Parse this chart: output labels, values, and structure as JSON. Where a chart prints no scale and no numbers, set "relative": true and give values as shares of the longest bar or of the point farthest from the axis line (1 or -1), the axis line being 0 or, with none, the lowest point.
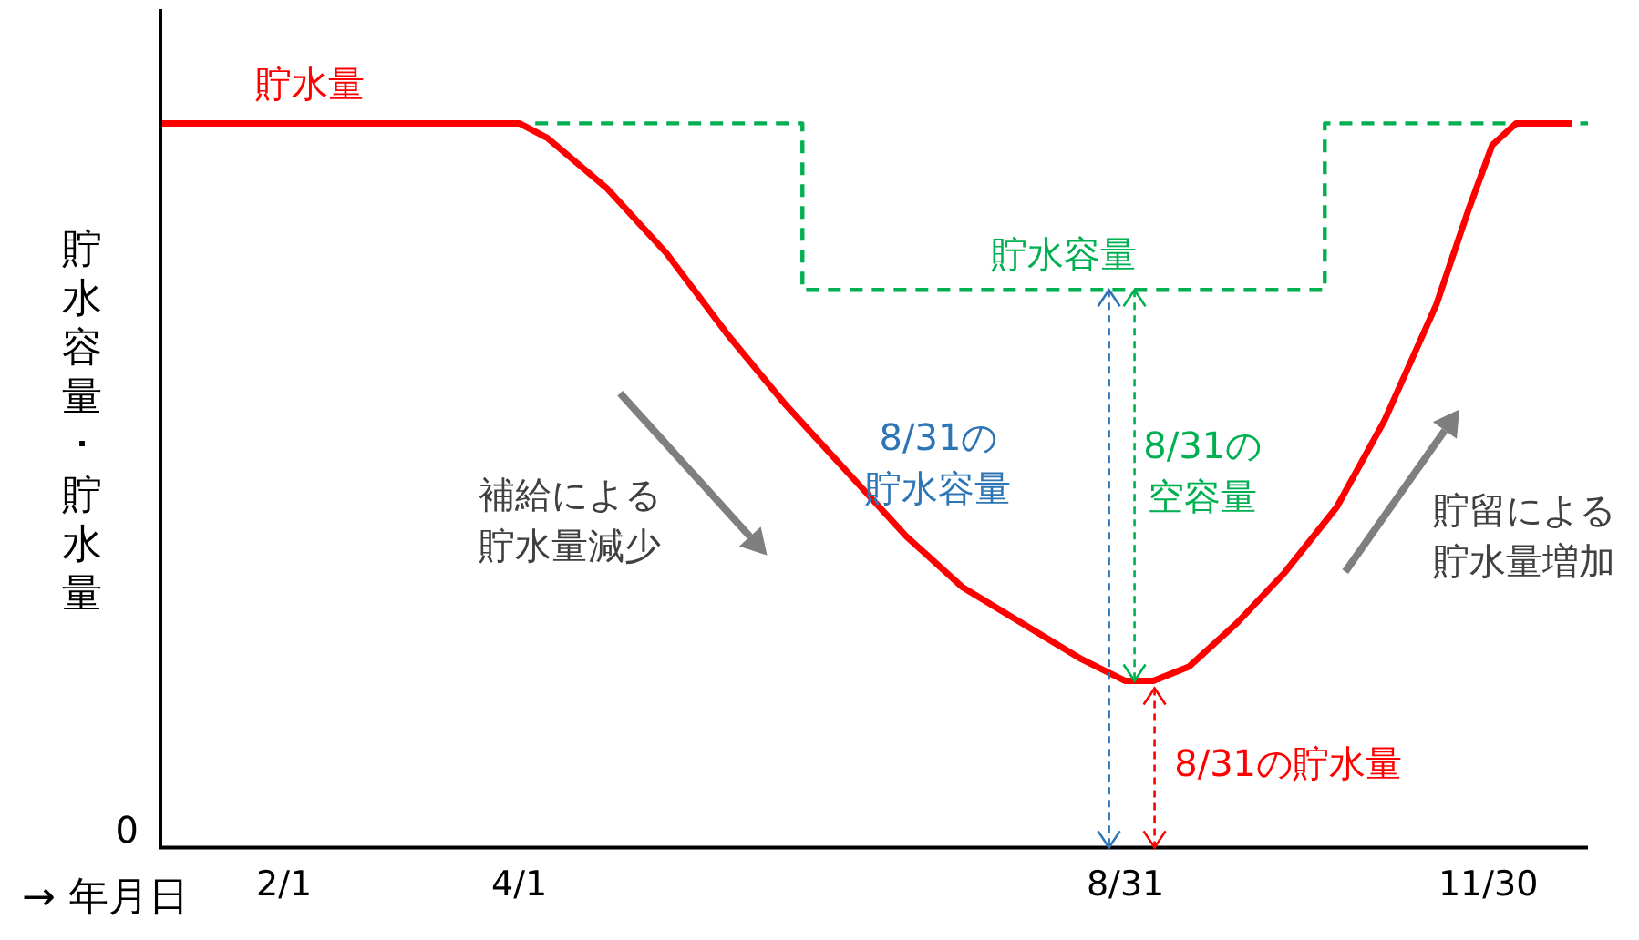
{
  "chart_data": {
    "type": "line",
    "relative": true,
    "xlabel": "→ 年月日",
    "ylabel": "貯水容量･貯水量",
    "xlim": [
      "--01-01",
      "--12-25"
    ],
    "xticks": [
      {
        "value": "--02-01",
        "label": "2/1"
      },
      {
        "value": "--04-01",
        "label": "4/1"
      },
      {
        "value": "--08-31",
        "label": "8/31"
      },
      {
        "value": "--11-30",
        "label": "11/30"
      }
    ],
    "legend": false,
    "grid": false,
    "marker": "none",
    "series": [
      {
        "name": "貯水容量",
        "type": "step",
        "color": "#00b050",
        "line_style": "dashed",
        "x": [
          "--04-05",
          "--06-11",
          "--10-20",
          "--12-25"
        ],
        "values": [
          1,
          0.77,
          1,
          1
        ]
      },
      {
        "name": "貯水量",
        "type": "line",
        "color": "#ff0000",
        "line_style": "solid",
        "x": [
          "--01-01",
          "--04-01",
          "--04-08",
          "--04-23",
          "--05-08",
          "--05-23",
          "--06-07",
          "--06-22",
          "--07-07",
          "--07-21",
          "--08-05",
          "--08-20",
          "--08-31",
          "--09-07",
          "--09-16",
          "--09-28",
          "--10-10",
          "--10-23",
          "--11-04",
          "--11-17",
          "--11-25",
          "--12-01",
          "--12-07",
          "--12-21"
        ],
        "values": [
          1,
          1,
          0.98,
          0.91,
          0.82,
          0.71,
          0.61,
          0.52,
          0.43,
          0.36,
          0.31,
          0.26,
          0.23,
          0.23,
          0.25,
          0.31,
          0.38,
          0.47,
          0.59,
          0.75,
          0.88,
          0.97,
          1,
          1
        ]
      }
    ],
    "annotations": [
      "8/31の貯水容量",
      "8/31の空容量",
      "8/31の貯水量",
      "補給による貯水量減少",
      "貯留による貯水量増加",
      "0"
    ]
  }
}
